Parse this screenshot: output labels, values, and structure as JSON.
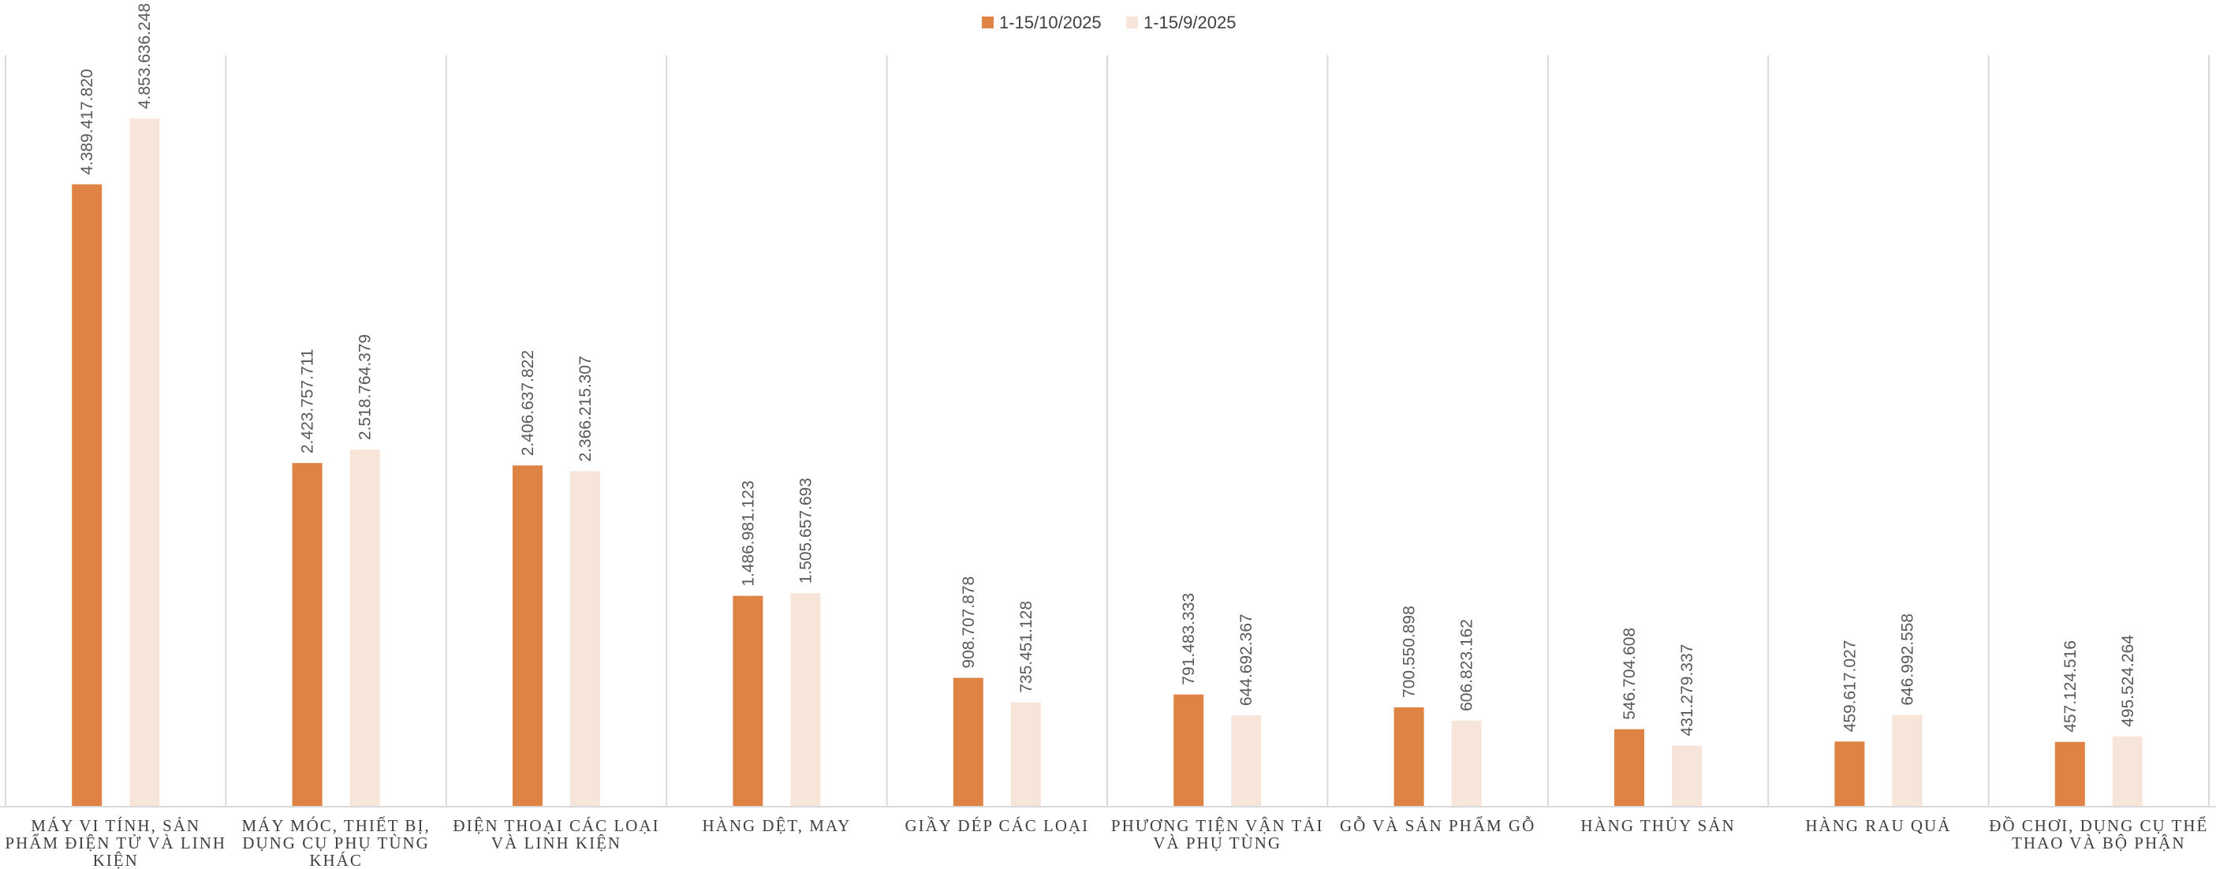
{
  "chart_data": {
    "type": "bar",
    "title": "",
    "xlabel": "",
    "ylabel": "",
    "ylim": [
      0,
      5300000000
    ],
    "grid": false,
    "legend_position": "top-center",
    "categories": [
      "MÁY VI TÍNH, SẢN PHẨM ĐIỆN TỬ VÀ LINH KIỆN",
      "MÁY MÓC, THIẾT BỊ, DỤNG CỤ PHỤ TÙNG KHÁC",
      "ĐIỆN THOẠI CÁC LOẠI VÀ LINH KIỆN",
      "HÀNG DỆT, MAY",
      "GIẦY DÉP CÁC LOẠI",
      "PHƯƠNG TIỆN VẬN TẢI VÀ PHỤ TÙNG",
      "GỖ VÀ SẢN PHẨM GỖ",
      "HÀNG THỦY SẢN",
      "HÀNG RAU QUẢ",
      "ĐỒ CHƠI, DỤNG CỤ THỂ THAO VÀ BỘ PHẬN"
    ],
    "category_lines": [
      [
        "MÁY VI TÍNH, SẢN",
        "PHẨM ĐIỆN TỬ VÀ LINH",
        "KIỆN"
      ],
      [
        "MÁY MÓC, THIẾT BỊ,",
        "DỤNG CỤ PHỤ TÙNG",
        "KHÁC"
      ],
      [
        "ĐIỆN THOẠI CÁC LOẠI",
        "VÀ LINH KIỆN"
      ],
      [
        "HÀNG DỆT, MAY"
      ],
      [
        "GIẦY DÉP CÁC LOẠI"
      ],
      [
        "PHƯƠNG TIỆN VẬN TẢI",
        "VÀ PHỤ TÙNG"
      ],
      [
        "GỖ VÀ SẢN PHẨM GỖ"
      ],
      [
        "HÀNG THỦY SẢN"
      ],
      [
        "HÀNG RAU QUẢ"
      ],
      [
        "ĐỒ CHƠI, DỤNG CỤ THỂ",
        "THAO VÀ BỘ PHẬN"
      ]
    ],
    "series": [
      {
        "name": "1-15/10/2025",
        "color": "#DE8344",
        "values": [
          4389417820,
          2423757711,
          2406637822,
          1486981123,
          908707878,
          791483333,
          700550898,
          546704608,
          459617027,
          457124516
        ],
        "labels": [
          "4.389.417.820",
          "2.423.757.711",
          "2.406.637.822",
          "1.486.981.123",
          "908.707.878",
          "791.483.333",
          "700.550.898",
          "546.704.608",
          "459.617.027",
          "457.124.516"
        ]
      },
      {
        "name": "1-15/9/2025",
        "color": "#F8E5D9",
        "values": [
          4853636248,
          2518764379,
          2366215307,
          1505657693,
          735451128,
          644692367,
          606823162,
          431279337,
          646992558,
          495524264
        ],
        "labels": [
          "4.853.636.248",
          "2.518.764.379",
          "2.366.215.307",
          "1.505.657.693",
          "735.451.128",
          "644.692.367",
          "606.823.162",
          "431.279.337",
          "646.992.558",
          "495.524.264"
        ]
      }
    ]
  }
}
